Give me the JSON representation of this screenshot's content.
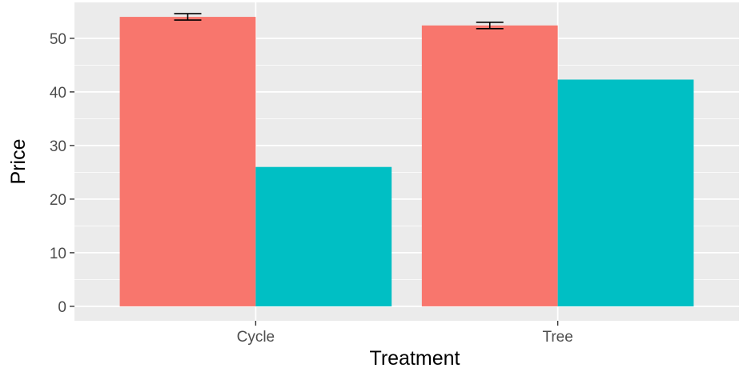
{
  "chart_data": {
    "type": "bar",
    "xlabel": "Treatment",
    "ylabel": "Price",
    "categories": [
      "Cycle",
      "Tree"
    ],
    "series": [
      {
        "values": [
          54.0,
          52.4
        ],
        "error": [
          0.6,
          0.6
        ],
        "color": "#F8766D"
      },
      {
        "values": [
          26.0,
          42.3
        ],
        "color": "#00BFC4"
      }
    ],
    "ylim": [
      -2.7,
      56.7
    ],
    "yticks": [
      0,
      10,
      20,
      30,
      40,
      50
    ],
    "grid": true,
    "legend": "none",
    "panel_background": "#EBEBEB",
    "grid_color": "#FFFFFF"
  }
}
